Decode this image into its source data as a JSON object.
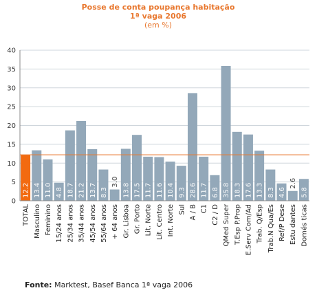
{
  "colors": {
    "bar": "#93a8b9",
    "highlight_bar": "#f26a10",
    "reference_line": "#e8772e",
    "title": "#e8772e",
    "grid": "#cfd6dc",
    "axis": "#888888",
    "value_label_dark": "#ffffff",
    "value_label_light": "#444444"
  },
  "source": {
    "label": "Fonte:",
    "text": " Marktest, Basef Banca 1ª vaga 2006"
  },
  "chart_data": {
    "type": "bar",
    "title": "Posse de conta poupança habitação",
    "subtitle_lines": [
      "1ª vaga 2006",
      "(em %)"
    ],
    "xlabel": "",
    "ylabel": "",
    "ylim": [
      0,
      40
    ],
    "yticks": [
      0,
      5,
      10,
      15,
      20,
      25,
      30,
      35,
      40
    ],
    "grid": true,
    "legend": "none",
    "reference_line_value": 12.2,
    "highlight_category": "TOTAL",
    "categories": [
      "TOTAL",
      "Masculino",
      "Feminino",
      "15/24 anos",
      "25/34 anos",
      "35/44 anos",
      "45/54 anos",
      "55/64 anos",
      "+ 64 anos",
      "Gr. Lisboa",
      "Gr. Porto",
      "Lit. Norte",
      "Lit. Centro",
      "Int. Norte",
      "Sul",
      "A / B",
      "C1",
      "C2 / D",
      "QMed Super",
      "T.Esp P.Prop",
      "E.Serv Com/Ad",
      "Trab. Q/Esp",
      "Trab.N Qua/Es",
      "Ref/P Dese",
      "Estu dantes",
      "Domés ticas"
    ],
    "values": [
      12.2,
      13.4,
      11.0,
      4.8,
      18.7,
      21.2,
      13.7,
      8.3,
      3.0,
      13.8,
      17.5,
      11.7,
      11.6,
      10.4,
      9.3,
      28.6,
      11.7,
      6.8,
      35.8,
      18.3,
      17.6,
      13.3,
      8.3,
      4.6,
      2.6,
      5.8
    ],
    "value_labels": [
      "12.2",
      "13.4",
      "11.0",
      "4.8",
      "18.7",
      "21.2",
      "13.7",
      "8.3",
      "3.0",
      "13.8",
      "17.5",
      "11.7",
      "11.6",
      "10.4",
      "9.3",
      "28.6",
      "11.7",
      "6.8",
      "35.8",
      "18.3",
      "17.6",
      "13.3",
      "8.3",
      "4.6",
      "2.6",
      "5.8"
    ]
  }
}
